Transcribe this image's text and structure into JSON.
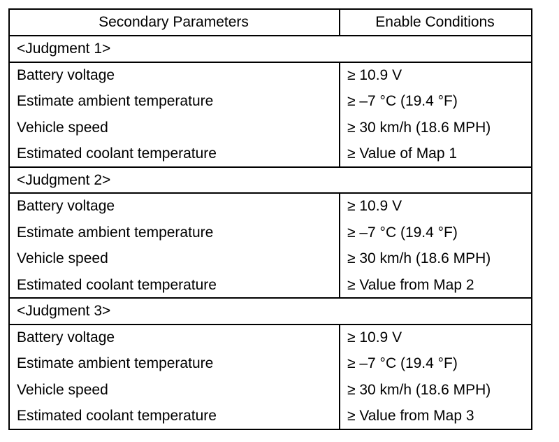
{
  "table": {
    "header": [
      "Secondary Parameters",
      "Enable Conditions"
    ],
    "groups": [
      {
        "title": "<Judgment 1>",
        "rows": [
          [
            "Battery voltage",
            "≥ 10.9 V"
          ],
          [
            "Estimate ambient temperature",
            "≥ –7 °C (19.4 °F)"
          ],
          [
            "Vehicle speed",
            "≥ 30 km/h (18.6 MPH)"
          ],
          [
            "Estimated coolant temperature",
            "≥ Value of Map 1"
          ]
        ]
      },
      {
        "title": "<Judgment 2>",
        "rows": [
          [
            "Battery voltage",
            "≥ 10.9 V"
          ],
          [
            "Estimate ambient temperature",
            "≥ –7 °C (19.4 °F)"
          ],
          [
            "Vehicle speed",
            "≥ 30 km/h (18.6 MPH)"
          ],
          [
            "Estimated coolant temperature",
            "≥ Value from Map 2"
          ]
        ]
      },
      {
        "title": "<Judgment 3>",
        "rows": [
          [
            "Battery voltage",
            "≥ 10.9 V"
          ],
          [
            "Estimate ambient temperature",
            "≥ –7 °C (19.4 °F)"
          ],
          [
            "Vehicle speed",
            "≥ 30 km/h (18.6 MPH)"
          ],
          [
            "Estimated coolant temperature",
            "≥ Value from Map 3"
          ]
        ]
      }
    ]
  }
}
